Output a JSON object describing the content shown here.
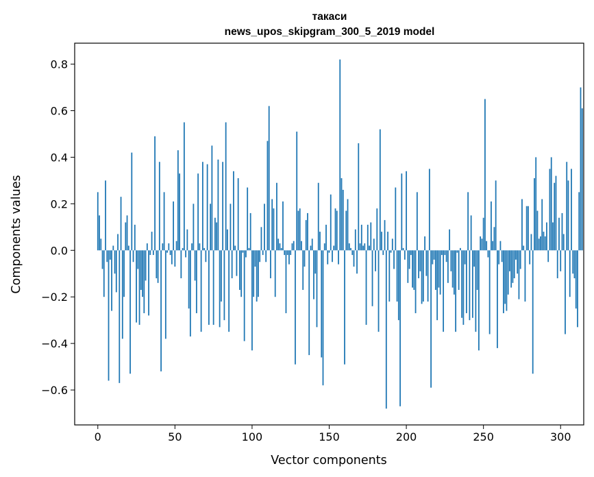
{
  "chart_data": {
    "type": "bar",
    "title": "такаси",
    "subtitle": "news_upos_skipgram_300_5_2019 model",
    "xlabel": "Vector components",
    "ylabel": "Components values",
    "xlim": [
      -15,
      315
    ],
    "ylim": [
      -0.75,
      0.89
    ],
    "xticks": [
      0,
      50,
      100,
      150,
      200,
      250,
      300
    ],
    "yticks": [
      -0.6,
      -0.4,
      -0.2,
      0.0,
      0.2,
      0.4,
      0.6,
      0.8
    ],
    "ytick_labels": [
      "−0.6",
      "−0.4",
      "−0.2",
      "0.0",
      "0.2",
      "0.4",
      "0.6",
      "0.8"
    ],
    "grid": false,
    "bar_color": "#1f77b4",
    "values": [
      0.25,
      0.15,
      0.05,
      -0.08,
      -0.2,
      0.3,
      -0.05,
      -0.56,
      -0.04,
      -0.26,
      0.02,
      -0.1,
      -0.18,
      0.07,
      -0.57,
      0.23,
      -0.38,
      -0.2,
      0.12,
      0.15,
      0.02,
      -0.53,
      0.42,
      -0.05,
      0.11,
      -0.31,
      -0.08,
      -0.32,
      -0.17,
      -0.2,
      -0.27,
      -0.13,
      0.03,
      -0.28,
      -0.02,
      0.08,
      -0.02,
      0.49,
      -0.12,
      -0.14,
      0.38,
      -0.52,
      0.03,
      0.25,
      -0.38,
      -0.01,
      0.03,
      -0.02,
      -0.06,
      0.21,
      -0.07,
      0.04,
      0.43,
      0.33,
      -0.12,
      0.01,
      0.55,
      -0.03,
      0.09,
      -0.25,
      -0.37,
      0.03,
      0.2,
      -0.13,
      -0.27,
      0.33,
      0.03,
      -0.35,
      0.38,
      0.01,
      -0.05,
      0.37,
      -0.32,
      0.2,
      0.45,
      -0.32,
      0.14,
      0.12,
      0.39,
      -0.33,
      -0.22,
      0.38,
      -0.3,
      0.55,
      0.09,
      -0.35,
      0.2,
      -0.12,
      0.34,
      0.02,
      -0.11,
      0.31,
      -0.17,
      -0.2,
      -0.01,
      -0.39,
      -0.03,
      0.27,
      0.01,
      0.16,
      -0.43,
      -0.2,
      -0.07,
      -0.22,
      -0.2,
      -0.05,
      0.1,
      -0.02,
      0.2,
      -0.05,
      0.47,
      0.62,
      -0.12,
      0.22,
      0.18,
      -0.2,
      0.29,
      0.05,
      0.03,
      0.01,
      0.21,
      -0.02,
      -0.27,
      -0.02,
      -0.06,
      -0.02,
      0.03,
      0.04,
      -0.49,
      0.51,
      0.17,
      0.18,
      0.04,
      -0.17,
      -0.07,
      0.13,
      0.16,
      -0.45,
      0.02,
      0.05,
      -0.21,
      -0.1,
      -0.33,
      0.29,
      0.08,
      -0.46,
      -0.58,
      0.03,
      0.11,
      -0.06,
      -0.01,
      0.24,
      -0.05,
      0.02,
      0.18,
      0.17,
      -0.06,
      0.82,
      0.31,
      0.26,
      -0.49,
      0.17,
      0.22,
      0.03,
      0.01,
      -0.02,
      -0.07,
      0.09,
      -0.1,
      0.46,
      0.03,
      0.11,
      0.02,
      0.03,
      -0.32,
      0.11,
      0.02,
      0.12,
      -0.24,
      0.05,
      -0.09,
      0.18,
      -0.35,
      0.52,
      0.08,
      -0.02,
      0.13,
      -0.68,
      0.08,
      -0.22,
      -0.01,
      0.05,
      -0.08,
      0.27,
      -0.22,
      -0.3,
      -0.67,
      0.33,
      0.01,
      -0.04,
      0.34,
      -0.14,
      -0.08,
      -0.02,
      -0.16,
      -0.17,
      -0.27,
      0.25,
      -0.12,
      -0.09,
      -0.23,
      -0.22,
      0.06,
      -0.11,
      -0.22,
      0.35,
      -0.59,
      -0.06,
      -0.04,
      -0.17,
      -0.3,
      -0.16,
      -0.19,
      -0.02,
      -0.35,
      -0.02,
      -0.05,
      -0.14,
      0.09,
      -0.09,
      -0.16,
      -0.19,
      -0.35,
      -0.01,
      -0.17,
      0.01,
      -0.29,
      -0.32,
      -0.06,
      -0.27,
      0.25,
      -0.3,
      0.15,
      -0.29,
      -0.07,
      -0.35,
      -0.17,
      -0.43,
      0.06,
      0.05,
      0.14,
      0.65,
      0.04,
      -0.03,
      -0.36,
      0.21,
      0.04,
      0.1,
      0.3,
      -0.42,
      -0.06,
      0.04,
      -0.05,
      -0.27,
      -0.23,
      -0.26,
      -0.19,
      -0.09,
      -0.16,
      -0.14,
      -0.12,
      -0.04,
      -0.1,
      -0.21,
      -0.08,
      0.22,
      0.02,
      -0.22,
      0.19,
      0.19,
      -0.06,
      0.07,
      -0.53,
      0.31,
      0.4,
      0.17,
      0.05,
      0.06,
      0.22,
      0.08,
      0.06,
      0.12,
      -0.05,
      0.35,
      0.4,
      0.12,
      0.29,
      0.32,
      -0.12,
      0.14,
      -0.09,
      0.16,
      0.07,
      -0.36,
      0.38,
      0.3,
      -0.2,
      0.35,
      -0.1,
      -0.12,
      -0.25,
      -0.33,
      0.25,
      0.7,
      0.61
    ]
  }
}
